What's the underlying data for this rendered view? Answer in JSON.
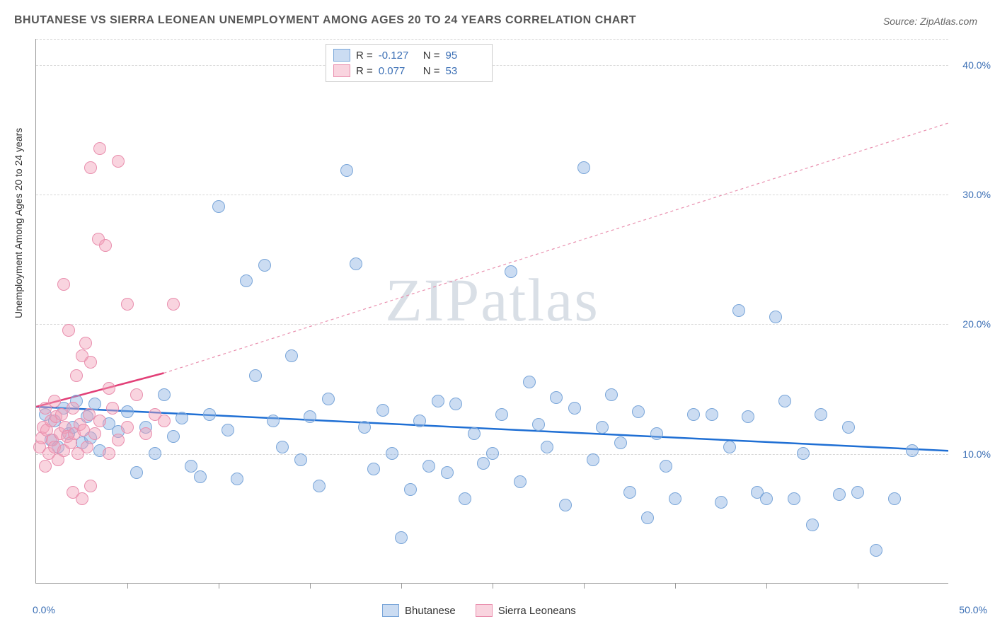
{
  "title": "BHUTANESE VS SIERRA LEONEAN UNEMPLOYMENT AMONG AGES 20 TO 24 YEARS CORRELATION CHART",
  "source": "Source: ZipAtlas.com",
  "ylabel": "Unemployment Among Ages 20 to 24 years",
  "watermark": "ZIPatlas",
  "chart": {
    "type": "scatter",
    "background_color": "#ffffff",
    "grid_color": "#d8d8d8",
    "axis_color": "#999999",
    "label_color": "#3b6fb5",
    "title_color": "#555555",
    "title_fontsize": 16,
    "label_fontsize": 14,
    "xlim": [
      0,
      50
    ],
    "ylim": [
      0,
      42
    ],
    "yticks": [
      10,
      20,
      30,
      40
    ],
    "ytick_labels": [
      "10.0%",
      "20.0%",
      "30.0%",
      "40.0%"
    ],
    "xtick_positions": [
      5,
      10,
      15,
      20,
      25,
      30,
      35,
      40,
      45
    ],
    "xtick_label_left": "0.0%",
    "xtick_label_right": "50.0%",
    "marker_radius": 9,
    "marker_border_width": 1.5,
    "series": [
      {
        "name": "Bhutanese",
        "fill": "rgba(139,177,227,0.45)",
        "stroke": "#7aa6d9",
        "r": -0.127,
        "n": 95,
        "trend": {
          "x1": 0,
          "y1": 13.6,
          "x2": 50,
          "y2": 10.2,
          "color": "#1f6fd4",
          "width": 2.5,
          "dash": "none"
        },
        "points": [
          [
            0.5,
            13.0
          ],
          [
            0.8,
            11.0
          ],
          [
            1.0,
            12.5
          ],
          [
            1.2,
            10.5
          ],
          [
            1.5,
            13.5
          ],
          [
            1.8,
            11.5
          ],
          [
            2.0,
            12.0
          ],
          [
            2.2,
            14.0
          ],
          [
            2.5,
            10.8
          ],
          [
            2.8,
            12.8
          ],
          [
            3.0,
            11.2
          ],
          [
            3.2,
            13.8
          ],
          [
            3.5,
            10.2
          ],
          [
            4.0,
            12.3
          ],
          [
            4.5,
            11.7
          ],
          [
            5.0,
            13.2
          ],
          [
            5.5,
            8.5
          ],
          [
            6.0,
            12.0
          ],
          [
            6.5,
            10.0
          ],
          [
            7.0,
            14.5
          ],
          [
            7.5,
            11.3
          ],
          [
            8.0,
            12.7
          ],
          [
            8.5,
            9.0
          ],
          [
            9.0,
            8.2
          ],
          [
            9.5,
            13.0
          ],
          [
            10.0,
            29.0
          ],
          [
            10.5,
            11.8
          ],
          [
            11.0,
            8.0
          ],
          [
            11.5,
            23.3
          ],
          [
            12.0,
            16.0
          ],
          [
            12.5,
            24.5
          ],
          [
            13.0,
            12.5
          ],
          [
            13.5,
            10.5
          ],
          [
            14.0,
            17.5
          ],
          [
            14.5,
            9.5
          ],
          [
            15.0,
            12.8
          ],
          [
            15.5,
            7.5
          ],
          [
            16.0,
            14.2
          ],
          [
            17.0,
            31.8
          ],
          [
            17.5,
            24.6
          ],
          [
            18.0,
            12.0
          ],
          [
            18.5,
            8.8
          ],
          [
            19.0,
            13.3
          ],
          [
            19.5,
            10.0
          ],
          [
            20.0,
            3.5
          ],
          [
            20.5,
            7.2
          ],
          [
            21.0,
            12.5
          ],
          [
            21.5,
            9.0
          ],
          [
            22.0,
            14.0
          ],
          [
            22.5,
            8.5
          ],
          [
            23.0,
            13.8
          ],
          [
            23.5,
            6.5
          ],
          [
            24.0,
            11.5
          ],
          [
            24.5,
            9.2
          ],
          [
            25.0,
            10.0
          ],
          [
            25.5,
            13.0
          ],
          [
            26.0,
            24.0
          ],
          [
            26.5,
            7.8
          ],
          [
            27.0,
            15.5
          ],
          [
            27.5,
            12.2
          ],
          [
            28.0,
            10.5
          ],
          [
            28.5,
            14.3
          ],
          [
            29.0,
            6.0
          ],
          [
            29.5,
            13.5
          ],
          [
            30.0,
            32.0
          ],
          [
            30.5,
            9.5
          ],
          [
            31.0,
            12.0
          ],
          [
            31.5,
            14.5
          ],
          [
            32.0,
            10.8
          ],
          [
            32.5,
            7.0
          ],
          [
            33.0,
            13.2
          ],
          [
            33.5,
            5.0
          ],
          [
            34.0,
            11.5
          ],
          [
            34.5,
            9.0
          ],
          [
            35.0,
            6.5
          ],
          [
            36.0,
            13.0
          ],
          [
            37.0,
            13.0
          ],
          [
            37.5,
            6.2
          ],
          [
            38.0,
            10.5
          ],
          [
            38.5,
            21.0
          ],
          [
            39.0,
            12.8
          ],
          [
            39.5,
            7.0
          ],
          [
            40.0,
            6.5
          ],
          [
            40.5,
            20.5
          ],
          [
            41.0,
            14.0
          ],
          [
            41.5,
            6.5
          ],
          [
            42.0,
            10.0
          ],
          [
            42.5,
            4.5
          ],
          [
            43.0,
            13.0
          ],
          [
            44.0,
            6.8
          ],
          [
            44.5,
            12.0
          ],
          [
            45.0,
            7.0
          ],
          [
            46.0,
            2.5
          ],
          [
            47.0,
            6.5
          ],
          [
            48.0,
            10.2
          ]
        ]
      },
      {
        "name": "Sierra Leoneans",
        "fill": "rgba(241,160,185,0.45)",
        "stroke": "#e98fae",
        "r": 0.077,
        "n": 53,
        "trend": {
          "x1": 0,
          "y1": 13.6,
          "x2": 7,
          "y2": 16.2,
          "color": "#e23f77",
          "width": 2.5,
          "dash": "none"
        },
        "trend_ext": {
          "x1": 7,
          "y1": 16.2,
          "x2": 50,
          "y2": 35.5,
          "color": "#e98fae",
          "width": 1.2,
          "dash": "4 4"
        },
        "points": [
          [
            0.2,
            10.5
          ],
          [
            0.3,
            11.2
          ],
          [
            0.4,
            12.0
          ],
          [
            0.5,
            13.5
          ],
          [
            0.5,
            9.0
          ],
          [
            0.6,
            11.8
          ],
          [
            0.7,
            10.0
          ],
          [
            0.8,
            12.5
          ],
          [
            0.9,
            11.0
          ],
          [
            1.0,
            14.0
          ],
          [
            1.0,
            10.5
          ],
          [
            1.1,
            12.8
          ],
          [
            1.2,
            9.5
          ],
          [
            1.3,
            11.5
          ],
          [
            1.4,
            13.0
          ],
          [
            1.5,
            10.2
          ],
          [
            1.5,
            23.0
          ],
          [
            1.6,
            12.0
          ],
          [
            1.7,
            11.3
          ],
          [
            1.8,
            19.5
          ],
          [
            1.9,
            10.8
          ],
          [
            2.0,
            13.5
          ],
          [
            2.0,
            7.0
          ],
          [
            2.1,
            11.5
          ],
          [
            2.2,
            16.0
          ],
          [
            2.3,
            10.0
          ],
          [
            2.4,
            12.2
          ],
          [
            2.5,
            17.5
          ],
          [
            2.5,
            6.5
          ],
          [
            2.6,
            11.8
          ],
          [
            2.7,
            18.5
          ],
          [
            2.8,
            10.5
          ],
          [
            2.9,
            13.0
          ],
          [
            3.0,
            17.0
          ],
          [
            3.0,
            32.0
          ],
          [
            3.0,
            7.5
          ],
          [
            3.2,
            11.5
          ],
          [
            3.4,
            26.5
          ],
          [
            3.5,
            12.5
          ],
          [
            3.5,
            33.5
          ],
          [
            3.8,
            26.0
          ],
          [
            4.0,
            10.0
          ],
          [
            4.0,
            15.0
          ],
          [
            4.2,
            13.5
          ],
          [
            4.5,
            11.0
          ],
          [
            4.5,
            32.5
          ],
          [
            5.0,
            12.0
          ],
          [
            5.0,
            21.5
          ],
          [
            5.5,
            14.5
          ],
          [
            6.0,
            11.5
          ],
          [
            6.5,
            13.0
          ],
          [
            7.0,
            12.5
          ],
          [
            7.5,
            21.5
          ]
        ]
      }
    ]
  },
  "legend_top_r_label": "R =",
  "legend_top_n_label": "N =",
  "legend_bottom": [
    "Bhutanese",
    "Sierra Leoneans"
  ]
}
